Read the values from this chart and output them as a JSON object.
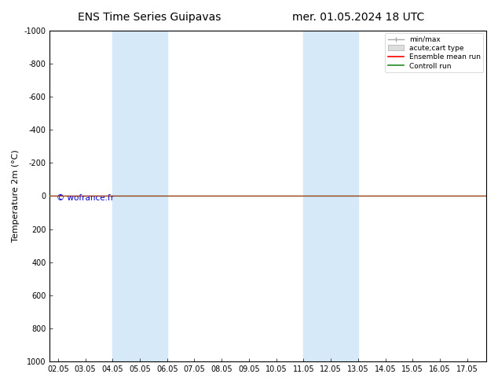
{
  "title_left": "ENS Time Series Guipavas",
  "title_right": "mer. 01.05.2024 18 UTC",
  "xlabel": "",
  "ylabel": "Temperature 2m (°C)",
  "xlim": [
    1.75,
    17.75
  ],
  "ylim_bottom": 1000,
  "ylim_top": -1000,
  "xticks": [
    2.05,
    3.05,
    4.05,
    5.05,
    6.05,
    7.05,
    8.05,
    9.05,
    10.05,
    11.05,
    12.05,
    13.05,
    14.05,
    15.05,
    16.05,
    17.05
  ],
  "xticklabels": [
    "02.05",
    "03.05",
    "04.05",
    "05.05",
    "06.05",
    "07.05",
    "08.05",
    "09.05",
    "10.05",
    "11.05",
    "12.05",
    "13.05",
    "14.05",
    "15.05",
    "16.05",
    "17.05"
  ],
  "yticks": [
    -1000,
    -800,
    -600,
    -400,
    -200,
    0,
    200,
    400,
    600,
    800,
    1000
  ],
  "shaded_bands": [
    [
      4.05,
      5.05
    ],
    [
      5.05,
      6.05
    ],
    [
      11.05,
      12.05
    ],
    [
      12.05,
      13.05
    ]
  ],
  "shaded_color": "#d6e9f8",
  "line_color_ensemble": "#ff0000",
  "line_color_control": "#228b22",
  "line_y": 0,
  "watermark": "© wofrance.fr",
  "legend_labels": [
    "min/max",
    "acute;cart type",
    "Ensemble mean run",
    "Controll run"
  ],
  "legend_colors": [
    "#888888",
    "#cccccc",
    "#ff0000",
    "#228b22"
  ],
  "background_color": "#ffffff",
  "title_fontsize": 10,
  "tick_fontsize": 7,
  "ylabel_fontsize": 8
}
